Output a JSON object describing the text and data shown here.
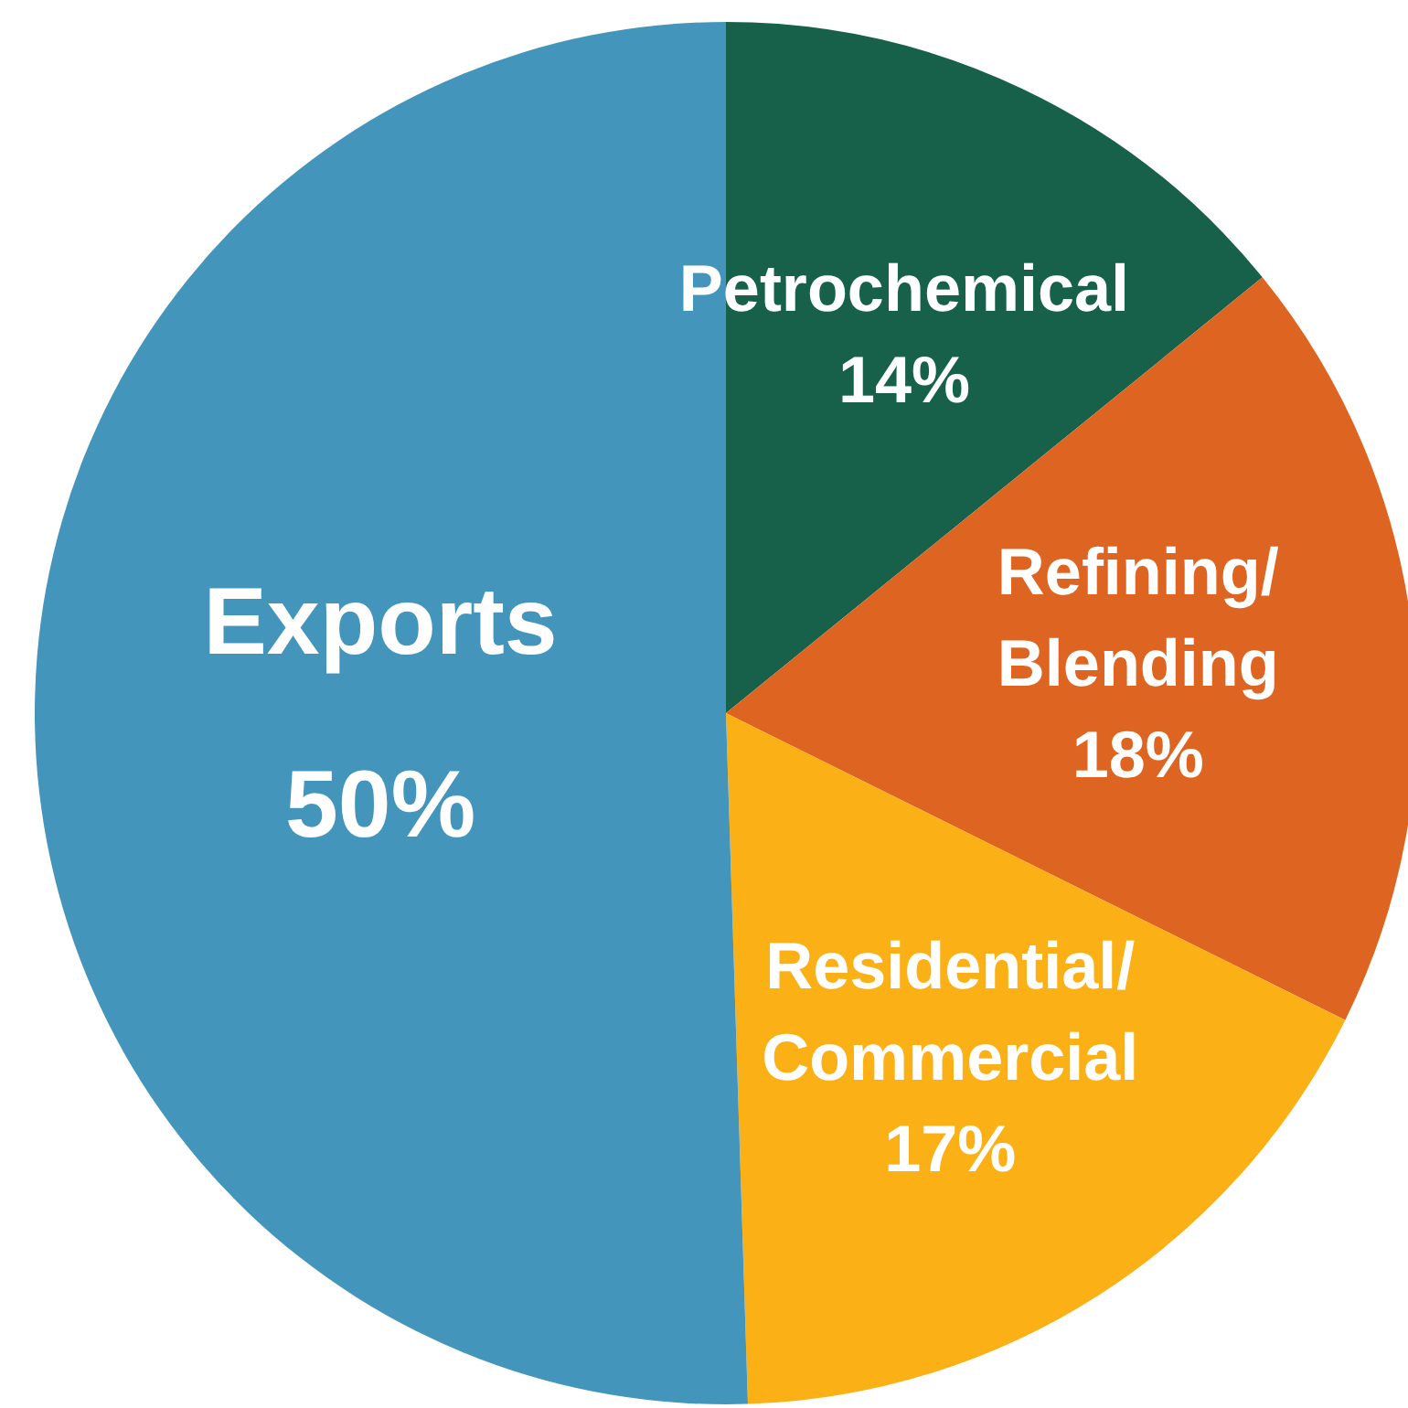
{
  "chart_data": {
    "type": "pie",
    "categories": [
      "Petrochemical",
      "Refining/\nBlending",
      "Residential/\nCommercial",
      "Exports"
    ],
    "values": [
      14,
      18,
      17,
      50
    ],
    "colors": [
      "#17604a",
      "#dd6521",
      "#fbb016",
      "#4495bb"
    ],
    "value_labels": [
      "14%",
      "18%",
      "17%",
      "50%"
    ],
    "legend": false
  }
}
